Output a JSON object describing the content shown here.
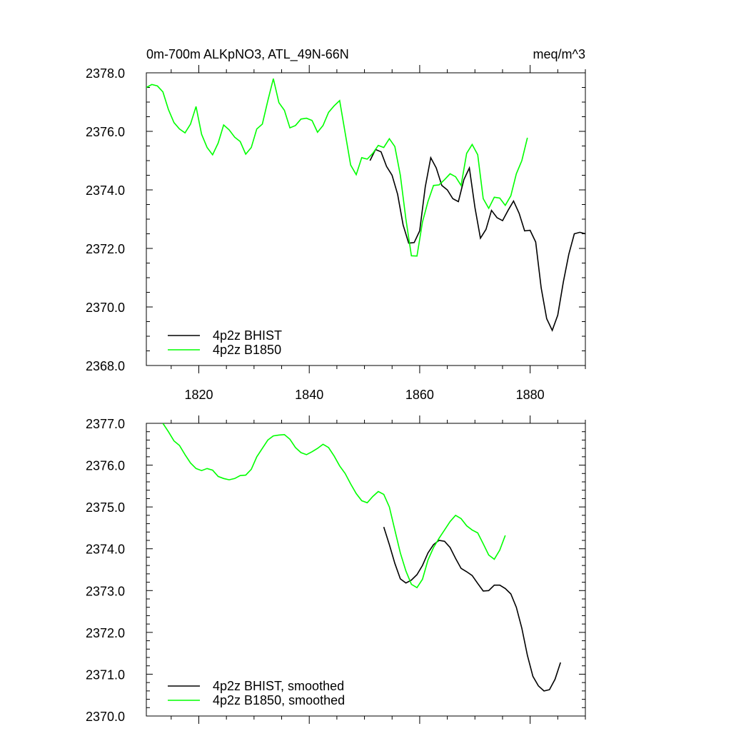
{
  "header": {
    "title": "0m-700m ALKpNO3, ATL_49N-66N",
    "units": "meq/m^3"
  },
  "colors": {
    "bhist": "#000000",
    "b1850": "#00ff00"
  },
  "chart_data": [
    {
      "type": "line",
      "xlim": [
        1810.5,
        1890
      ],
      "ylim": [
        2368,
        2378
      ],
      "x_ticks": [
        1820,
        1840,
        1860,
        1880
      ],
      "x_tick_labels": [
        "1820",
        "1840",
        "1860",
        "1880"
      ],
      "y_ticks": [
        2368,
        2370,
        2372,
        2374,
        2376,
        2378
      ],
      "y_tick_labels": [
        "2368.0",
        "2370.0",
        "2372.0",
        "2374.0",
        "2376.0",
        "2378.0"
      ],
      "legend_position": "bottom-left",
      "series": [
        {
          "name": "4p2z BHIST",
          "color": "#000000",
          "points": [
            [
              1851,
              2375.0
            ],
            [
              1852,
              2375.38
            ],
            [
              1853,
              2375.3
            ],
            [
              1854,
              2374.8
            ],
            [
              1855,
              2374.5
            ],
            [
              1856,
              2373.85
            ],
            [
              1857,
              2372.8
            ],
            [
              1858,
              2372.18
            ],
            [
              1859,
              2372.2
            ],
            [
              1860,
              2372.6
            ],
            [
              1861,
              2374.1
            ],
            [
              1862,
              2375.1
            ],
            [
              1863,
              2374.75
            ],
            [
              1864,
              2374.15
            ],
            [
              1865,
              2374.0
            ],
            [
              1866,
              2373.7
            ],
            [
              1867,
              2373.6
            ],
            [
              1868,
              2374.35
            ],
            [
              1869,
              2374.75
            ],
            [
              1870,
              2373.4
            ],
            [
              1871,
              2372.35
            ],
            [
              1872,
              2372.65
            ],
            [
              1873,
              2373.3
            ],
            [
              1874,
              2373.05
            ],
            [
              1875,
              2372.95
            ],
            [
              1876,
              2373.3
            ],
            [
              1877,
              2373.62
            ],
            [
              1878,
              2373.2
            ],
            [
              1879,
              2372.6
            ],
            [
              1880,
              2372.62
            ],
            [
              1881,
              2372.22
            ],
            [
              1882,
              2370.65
            ],
            [
              1883,
              2369.6
            ],
            [
              1884,
              2369.2
            ],
            [
              1885,
              2369.72
            ],
            [
              1886,
              2370.85
            ],
            [
              1887,
              2371.8
            ],
            [
              1888,
              2372.5
            ],
            [
              1889,
              2372.55
            ],
            [
              1890,
              2372.5
            ]
          ]
        },
        {
          "name": "4p2z B1850",
          "color": "#00ff00",
          "points": [
            [
              1810.5,
              2377.5
            ],
            [
              1811.5,
              2377.6
            ],
            [
              1812.5,
              2377.55
            ],
            [
              1813.5,
              2377.35
            ],
            [
              1814.5,
              2376.75
            ],
            [
              1815.5,
              2376.3
            ],
            [
              1816.5,
              2376.08
            ],
            [
              1817.5,
              2375.95
            ],
            [
              1818.5,
              2376.25
            ],
            [
              1819.5,
              2376.85
            ],
            [
              1820.5,
              2375.9
            ],
            [
              1821.5,
              2375.45
            ],
            [
              1822.5,
              2375.2
            ],
            [
              1823.5,
              2375.6
            ],
            [
              1824.5,
              2376.22
            ],
            [
              1825.5,
              2376.05
            ],
            [
              1826.5,
              2375.8
            ],
            [
              1827.5,
              2375.65
            ],
            [
              1828.5,
              2375.22
            ],
            [
              1829.5,
              2375.45
            ],
            [
              1830.5,
              2376.08
            ],
            [
              1831.5,
              2376.25
            ],
            [
              1832.5,
              2377.05
            ],
            [
              1833.5,
              2377.8
            ],
            [
              1834.5,
              2376.98
            ],
            [
              1835.5,
              2376.72
            ],
            [
              1836.5,
              2376.12
            ],
            [
              1837.5,
              2376.2
            ],
            [
              1838.5,
              2376.42
            ],
            [
              1839.5,
              2376.45
            ],
            [
              1840.5,
              2376.37
            ],
            [
              1841.5,
              2375.97
            ],
            [
              1842.5,
              2376.2
            ],
            [
              1843.5,
              2376.65
            ],
            [
              1844.5,
              2376.87
            ],
            [
              1845.5,
              2377.05
            ],
            [
              1846.5,
              2375.95
            ],
            [
              1847.5,
              2374.85
            ],
            [
              1848.5,
              2374.52
            ],
            [
              1849.5,
              2375.1
            ],
            [
              1850.5,
              2375.05
            ],
            [
              1851.5,
              2375.25
            ],
            [
              1852.5,
              2375.52
            ],
            [
              1853.5,
              2375.45
            ],
            [
              1854.5,
              2375.75
            ],
            [
              1855.5,
              2375.48
            ],
            [
              1856.5,
              2374.5
            ],
            [
              1857.5,
              2373.0
            ],
            [
              1858.5,
              2371.75
            ],
            [
              1859.5,
              2371.74
            ],
            [
              1860.5,
              2372.9
            ],
            [
              1861.5,
              2373.6
            ],
            [
              1862.5,
              2374.15
            ],
            [
              1863.5,
              2374.17
            ],
            [
              1864.5,
              2374.35
            ],
            [
              1865.5,
              2374.55
            ],
            [
              1866.5,
              2374.45
            ],
            [
              1867.5,
              2374.15
            ],
            [
              1868.5,
              2375.25
            ],
            [
              1869.5,
              2375.55
            ],
            [
              1870.5,
              2375.2
            ],
            [
              1871.5,
              2373.7
            ],
            [
              1872.5,
              2373.37
            ],
            [
              1873.5,
              2373.75
            ],
            [
              1874.5,
              2373.72
            ],
            [
              1875.5,
              2373.47
            ],
            [
              1876.5,
              2373.8
            ],
            [
              1877.5,
              2374.55
            ],
            [
              1878.5,
              2375.0
            ],
            [
              1879.5,
              2375.78
            ]
          ]
        }
      ]
    },
    {
      "type": "line",
      "xlim": [
        1810.5,
        1890
      ],
      "ylim": [
        2370,
        2377
      ],
      "x_ticks": [
        1820,
        1840,
        1860,
        1880
      ],
      "y_ticks": [
        2370,
        2371,
        2372,
        2373,
        2374,
        2375,
        2376,
        2377
      ],
      "y_tick_labels": [
        "2370.0",
        "2371.0",
        "2372.0",
        "2373.0",
        "2374.0",
        "2375.0",
        "2376.0",
        "2377.0"
      ],
      "legend_position": "bottom-left",
      "series": [
        {
          "name": "4p2z BHIST, smoothed",
          "color": "#000000",
          "points": [
            [
              1853.5,
              2374.52
            ],
            [
              1854.5,
              2374.1
            ],
            [
              1855.5,
              2373.65
            ],
            [
              1856.5,
              2373.28
            ],
            [
              1857.5,
              2373.18
            ],
            [
              1858.5,
              2373.25
            ],
            [
              1859.5,
              2373.38
            ],
            [
              1860.5,
              2373.6
            ],
            [
              1861.5,
              2373.9
            ],
            [
              1862.5,
              2374.1
            ],
            [
              1863.5,
              2374.2
            ],
            [
              1864.5,
              2374.18
            ],
            [
              1865.5,
              2374.03
            ],
            [
              1866.5,
              2373.77
            ],
            [
              1867.5,
              2373.53
            ],
            [
              1868.5,
              2373.45
            ],
            [
              1869.5,
              2373.36
            ],
            [
              1870.5,
              2373.17
            ],
            [
              1871.5,
              2372.99
            ],
            [
              1872.5,
              2373.0
            ],
            [
              1873.5,
              2373.13
            ],
            [
              1874.5,
              2373.13
            ],
            [
              1875.5,
              2373.05
            ],
            [
              1876.5,
              2372.92
            ],
            [
              1877.5,
              2372.6
            ],
            [
              1878.5,
              2372.1
            ],
            [
              1879.5,
              2371.45
            ],
            [
              1880.5,
              2370.95
            ],
            [
              1881.5,
              2370.72
            ],
            [
              1882.5,
              2370.6
            ],
            [
              1883.5,
              2370.63
            ],
            [
              1884.5,
              2370.88
            ],
            [
              1885.5,
              2371.28
            ]
          ]
        },
        {
          "name": "4p2z B1850, smoothed",
          "color": "#00ff00",
          "points": [
            [
              1813.5,
              2377.0
            ],
            [
              1814.5,
              2376.8
            ],
            [
              1815.5,
              2376.58
            ],
            [
              1816.5,
              2376.47
            ],
            [
              1817.5,
              2376.25
            ],
            [
              1818.5,
              2376.05
            ],
            [
              1819.5,
              2375.92
            ],
            [
              1820.5,
              2375.87
            ],
            [
              1821.5,
              2375.92
            ],
            [
              1822.5,
              2375.88
            ],
            [
              1823.5,
              2375.73
            ],
            [
              1824.5,
              2375.68
            ],
            [
              1825.5,
              2375.65
            ],
            [
              1826.5,
              2375.68
            ],
            [
              1827.5,
              2375.75
            ],
            [
              1828.5,
              2375.76
            ],
            [
              1829.5,
              2375.9
            ],
            [
              1830.5,
              2376.2
            ],
            [
              1831.5,
              2376.4
            ],
            [
              1832.5,
              2376.6
            ],
            [
              1833.5,
              2376.7
            ],
            [
              1834.5,
              2376.72
            ],
            [
              1835.5,
              2376.73
            ],
            [
              1836.5,
              2376.62
            ],
            [
              1837.5,
              2376.42
            ],
            [
              1838.5,
              2376.3
            ],
            [
              1839.5,
              2376.25
            ],
            [
              1840.5,
              2376.32
            ],
            [
              1841.5,
              2376.4
            ],
            [
              1842.5,
              2376.5
            ],
            [
              1843.5,
              2376.42
            ],
            [
              1844.5,
              2376.22
            ],
            [
              1845.5,
              2375.98
            ],
            [
              1846.5,
              2375.8
            ],
            [
              1847.5,
              2375.55
            ],
            [
              1848.5,
              2375.32
            ],
            [
              1849.5,
              2375.15
            ],
            [
              1850.5,
              2375.1
            ],
            [
              1851.5,
              2375.25
            ],
            [
              1852.5,
              2375.37
            ],
            [
              1853.5,
              2375.3
            ],
            [
              1854.5,
              2375.0
            ],
            [
              1855.5,
              2374.45
            ],
            [
              1856.5,
              2373.9
            ],
            [
              1857.5,
              2373.47
            ],
            [
              1858.5,
              2373.15
            ],
            [
              1859.5,
              2373.07
            ],
            [
              1860.5,
              2373.27
            ],
            [
              1861.5,
              2373.73
            ],
            [
              1862.5,
              2374.03
            ],
            [
              1863.5,
              2374.25
            ],
            [
              1864.5,
              2374.45
            ],
            [
              1865.5,
              2374.65
            ],
            [
              1866.5,
              2374.8
            ],
            [
              1867.5,
              2374.72
            ],
            [
              1868.5,
              2374.55
            ],
            [
              1869.5,
              2374.45
            ],
            [
              1870.5,
              2374.38
            ],
            [
              1871.5,
              2374.12
            ],
            [
              1872.5,
              2373.85
            ],
            [
              1873.5,
              2373.75
            ],
            [
              1874.5,
              2373.97
            ],
            [
              1875.5,
              2374.32
            ]
          ]
        }
      ]
    }
  ]
}
